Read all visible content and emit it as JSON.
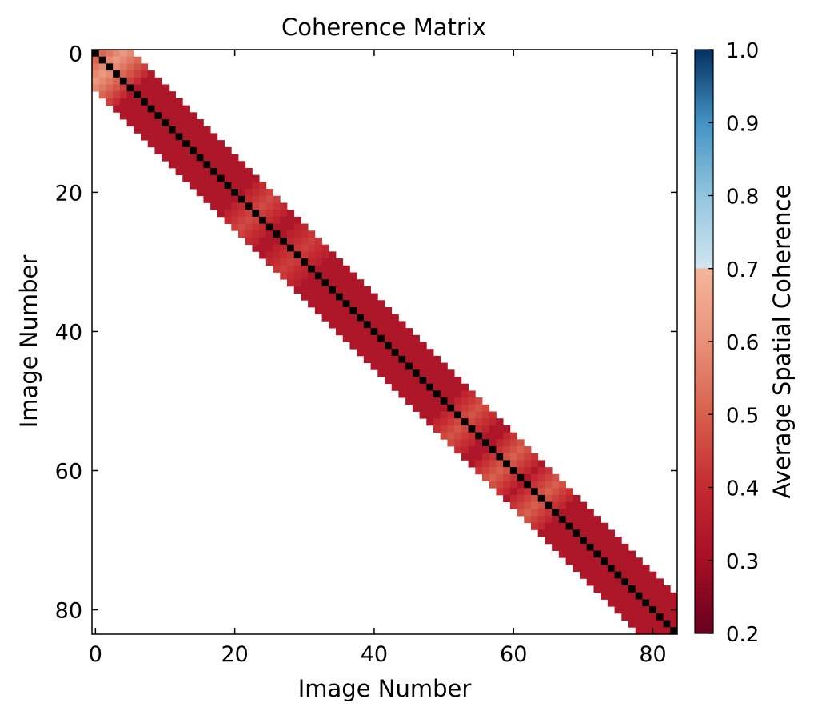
{
  "chart_data": {
    "type": "heatmap",
    "title": "Coherence Matrix",
    "xlabel": "Image Number",
    "ylabel": "Image Number",
    "n_images": 84,
    "xlim": [
      -0.5,
      83.5
    ],
    "ylim": [
      -0.5,
      83.5
    ],
    "x_ticks": [
      0,
      20,
      40,
      60,
      80
    ],
    "y_ticks": [
      0,
      20,
      40,
      60,
      80
    ],
    "band_halfwidth": 5,
    "diagonal_value": 0.2,
    "base_value": 0.33,
    "elevated_regions": [
      {
        "center": 2,
        "halfwidth": 3,
        "value": 0.62
      },
      {
        "center": 23,
        "halfwidth": 2,
        "value": 0.46
      },
      {
        "center": 29,
        "halfwidth": 2,
        "value": 0.44
      },
      {
        "center": 53,
        "halfwidth": 2,
        "value": 0.48
      },
      {
        "center": 59,
        "halfwidth": 2,
        "value": 0.5
      },
      {
        "center": 64,
        "halfwidth": 2,
        "value": 0.5
      }
    ],
    "grid": false,
    "colorbar": {
      "label": "Average Spatial Coherence",
      "range": [
        0.2,
        1.0
      ],
      "ticks": [
        0.2,
        0.3,
        0.4,
        0.5,
        0.6,
        0.7,
        0.8,
        0.9,
        1.0
      ],
      "tick_labels": [
        "0.2",
        "0.3",
        "0.4",
        "0.5",
        "0.6",
        "0.7",
        "0.8",
        "0.9",
        "1.0"
      ],
      "colormap_stops": [
        {
          "value": 0.2,
          "color": "#67001f"
        },
        {
          "value": 0.3,
          "color": "#a50f25"
        },
        {
          "value": 0.4,
          "color": "#c42a31"
        },
        {
          "value": 0.5,
          "color": "#d6604d"
        },
        {
          "value": 0.6,
          "color": "#e9917a"
        },
        {
          "value": 0.7,
          "color": "#f4b69a"
        },
        {
          "value": 0.7001,
          "color": "#d1e5f0"
        },
        {
          "value": 0.8,
          "color": "#92c5de"
        },
        {
          "value": 0.9,
          "color": "#4393c3"
        },
        {
          "value": 1.0,
          "color": "#053061"
        }
      ]
    }
  }
}
